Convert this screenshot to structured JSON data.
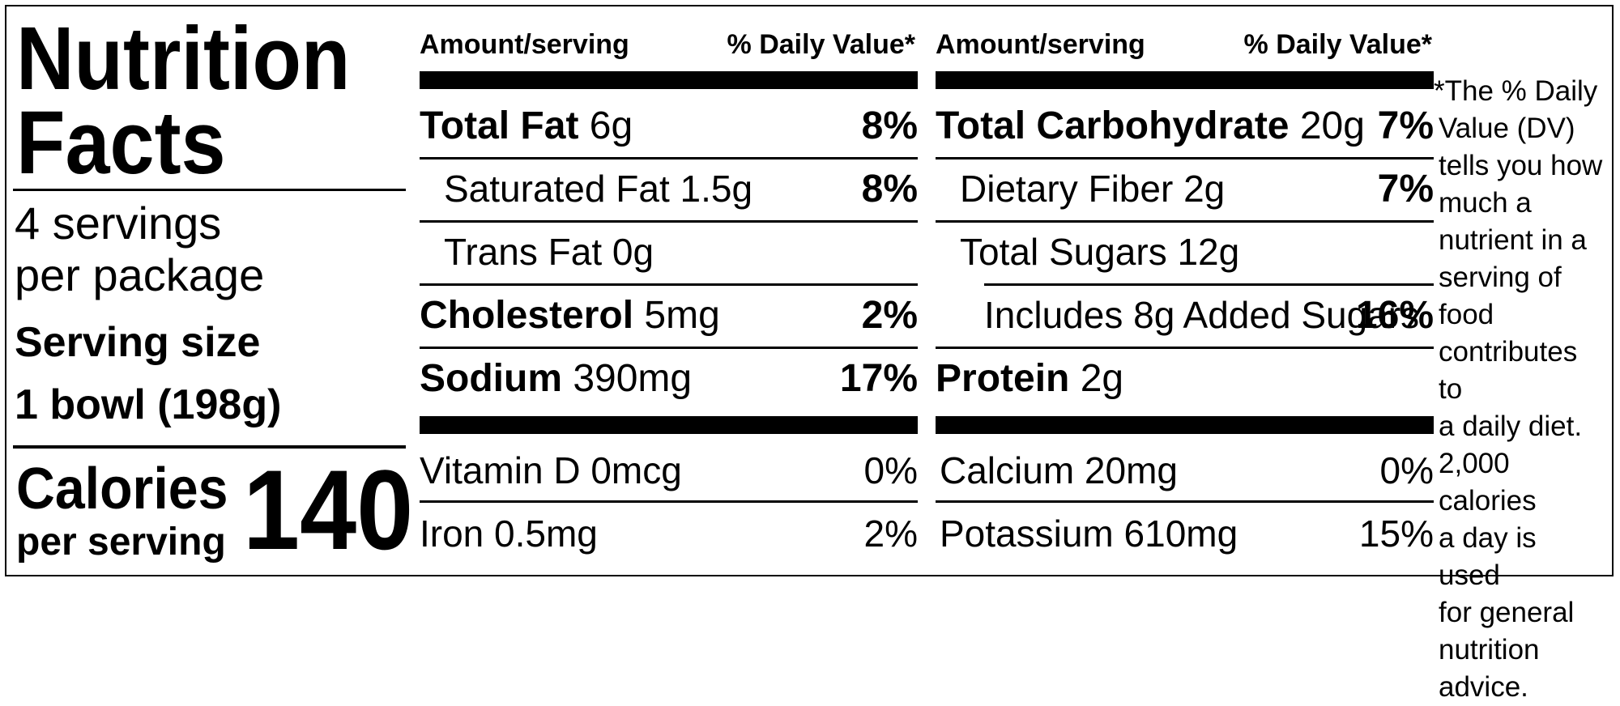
{
  "title_line1": "Nutrition",
  "title_line2": "Facts",
  "servings_line1": "4 servings",
  "servings_line2": "per package",
  "serving_size_label": "Serving size",
  "serving_size_value": "1 bowl (198g)",
  "calories_label_line1": "Calories",
  "calories_label_line2": "per serving",
  "calories_value": "140",
  "headers": {
    "amount": "Amount/serving",
    "dv": "% Daily Value*"
  },
  "left_rows": [
    {
      "name": "Total Fat",
      "amount": "6g",
      "dv": "8%"
    },
    {
      "name": "Saturated Fat 1.5g",
      "dv": "8%"
    },
    {
      "name": "Trans Fat 0g",
      "dv": ""
    },
    {
      "name": "Cholesterol",
      "amount": "5mg",
      "dv": "2%"
    },
    {
      "name": "Sodium",
      "amount": "390mg",
      "dv": "17%"
    }
  ],
  "right_rows": [
    {
      "name": "Total Carbohydrate",
      "amount": "20g",
      "dv": "7%"
    },
    {
      "name": "Dietary Fiber 2g",
      "dv": "7%"
    },
    {
      "name": "Total Sugars 12g",
      "dv": ""
    },
    {
      "name": "Includes 8g Added Sugars",
      "dv": "16%"
    },
    {
      "name": "Protein",
      "amount": "2g",
      "dv": ""
    }
  ],
  "left_vitamins": [
    {
      "name": "Vitamin D 0mcg",
      "dv": "0%"
    },
    {
      "name": "Iron 0.5mg",
      "dv": "2%"
    }
  ],
  "right_vitamins": [
    {
      "name": "Calcium 20mg",
      "dv": "0%"
    },
    {
      "name": "Potassium 610mg",
      "dv": "15%"
    }
  ],
  "footnote": [
    "*The % Daily",
    "Value (DV)",
    "tells you how",
    "much a",
    "nutrient in a",
    "serving of food",
    "contributes to",
    "a daily diet.",
    "2,000 calories",
    "a day is used",
    "for general",
    "nutrition",
    "advice."
  ]
}
